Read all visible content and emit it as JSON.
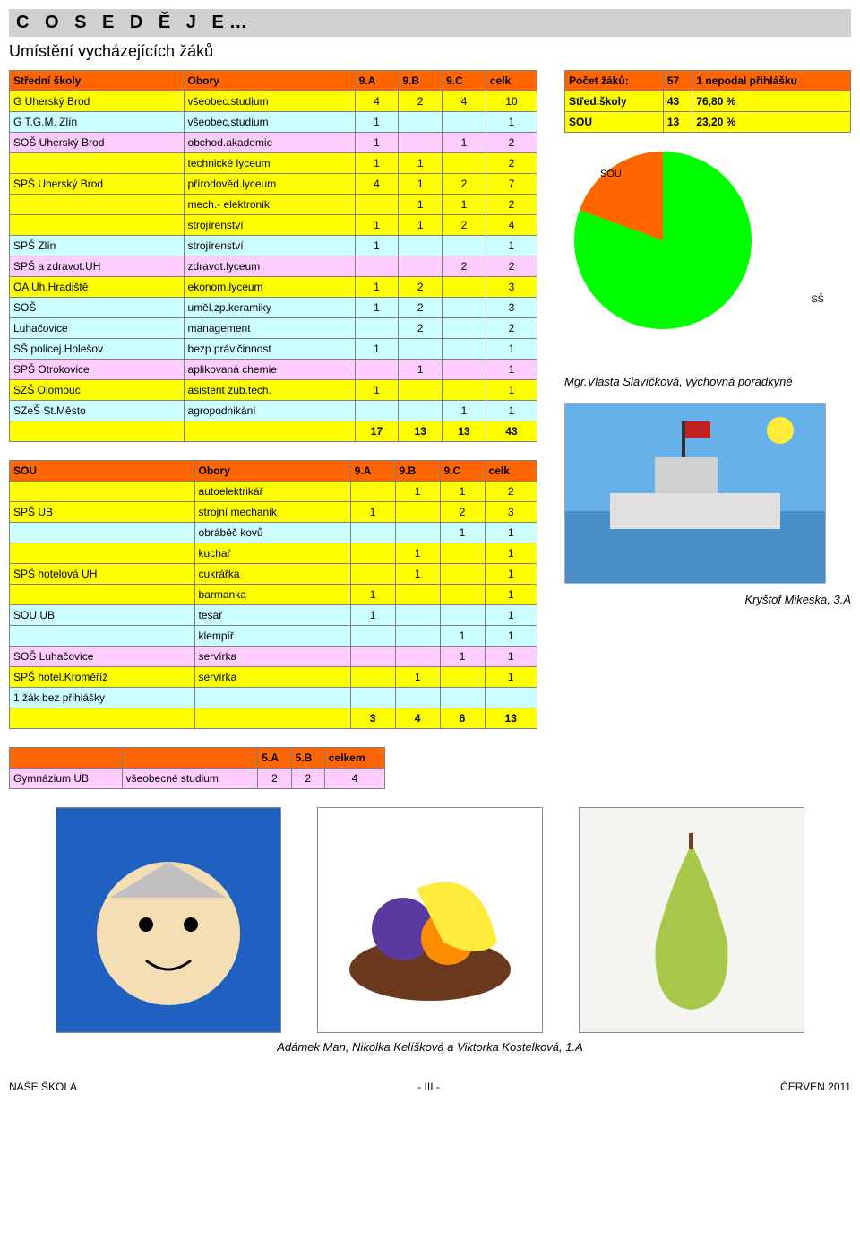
{
  "header": {
    "title": "C O  S E  D Ě J E…",
    "subtitle": "Umístění vycházejících žáků"
  },
  "table1": {
    "headers": [
      "Střední školy",
      "Obory",
      "9.A",
      "9.B",
      "9.C",
      "celk"
    ],
    "rows": [
      {
        "c": [
          "G Uherský Brod",
          "všeobec.studium",
          "4",
          "2",
          "4",
          "10"
        ],
        "cls": "row-yellow"
      },
      {
        "c": [
          "G T.G.M. Zlín",
          "všeobec.studium",
          "1",
          "",
          "",
          "1"
        ],
        "cls": "row-blue"
      },
      {
        "c": [
          "SOŠ Uherský Brod",
          "obchod.akademie",
          "1",
          "",
          "1",
          "2"
        ],
        "cls": "row-pink"
      },
      {
        "c": [
          "",
          "technické lyceum",
          "1",
          "1",
          "",
          "2"
        ],
        "cls": "row-yellow"
      },
      {
        "c": [
          "SPŠ Uherský Brod",
          "přírodověd.lyceum",
          "4",
          "1",
          "2",
          "7"
        ],
        "cls": "row-yellow"
      },
      {
        "c": [
          "",
          "mech.- elektronik",
          "",
          "1",
          "1",
          "2"
        ],
        "cls": "row-yellow"
      },
      {
        "c": [
          "",
          "strojírenství",
          "1",
          "1",
          "2",
          "4"
        ],
        "cls": "row-yellow"
      },
      {
        "c": [
          "SPŠ Zlín",
          "strojírenství",
          "1",
          "",
          "",
          "1"
        ],
        "cls": "row-blue"
      },
      {
        "c": [
          "SPŠ a zdravot.UH",
          "zdravot.lyceum",
          "",
          "",
          "2",
          "2"
        ],
        "cls": "row-pink"
      },
      {
        "c": [
          "OA Uh.Hradiště",
          "ekonom.lyceum",
          "1",
          "2",
          "",
          "3"
        ],
        "cls": "row-yellow"
      },
      {
        "c": [
          "SOŠ",
          "uměl.zp.keramiky",
          "1",
          "2",
          "",
          "3"
        ],
        "cls": "row-blue"
      },
      {
        "c": [
          "Luhačovice",
          "management",
          "",
          "2",
          "",
          "2"
        ],
        "cls": "row-blue"
      },
      {
        "c": [
          "SŠ policej.Holešov",
          "bezp.práv.činnost",
          "1",
          "",
          "",
          "1"
        ],
        "cls": "row-blue"
      },
      {
        "c": [
          "SPŠ Otrokovice",
          "aplikovaná chemie",
          "",
          "1",
          "",
          "1"
        ],
        "cls": "row-pink"
      },
      {
        "c": [
          "SZŠ Olomouc",
          "asistent zub.tech.",
          "1",
          "",
          "",
          "1"
        ],
        "cls": "row-yellow"
      },
      {
        "c": [
          "SZeŠ St.Město",
          "agropodnikání",
          "",
          "",
          "1",
          "1"
        ],
        "cls": "row-blue"
      }
    ],
    "totals": [
      "",
      "",
      "17",
      "13",
      "13",
      "43"
    ]
  },
  "table2": {
    "headers": [
      "SOU",
      "Obory",
      "9.A",
      "9.B",
      "9.C",
      "celk"
    ],
    "rows": [
      {
        "c": [
          "",
          "autoelektrikář",
          "",
          "1",
          "1",
          "2"
        ],
        "cls": "row-yellow"
      },
      {
        "c": [
          "SPŠ UB",
          "strojní mechanik",
          "1",
          "",
          "2",
          "3"
        ],
        "cls": "row-yellow"
      },
      {
        "c": [
          "",
          "obráběč kovů",
          "",
          "",
          "1",
          "1"
        ],
        "cls": "row-blue"
      },
      {
        "c": [
          "",
          "kuchař",
          "",
          "1",
          "",
          "1"
        ],
        "cls": "row-yellow"
      },
      {
        "c": [
          "SPŠ hotelová UH",
          "cukrářka",
          "",
          "1",
          "",
          "1"
        ],
        "cls": "row-yellow"
      },
      {
        "c": [
          "",
          "barmanka",
          "1",
          "",
          "",
          "1"
        ],
        "cls": "row-yellow"
      },
      {
        "c": [
          "SOU UB",
          "tesař",
          "1",
          "",
          "",
          "1"
        ],
        "cls": "row-blue"
      },
      {
        "c": [
          "",
          "klempíř",
          "",
          "",
          "1",
          "1"
        ],
        "cls": "row-blue"
      },
      {
        "c": [
          "SOŠ Luhačovice",
          "servírka",
          "",
          "",
          "1",
          "1"
        ],
        "cls": "row-pink"
      },
      {
        "c": [
          "SPŠ hotel.Kroměříž",
          "servírka",
          "",
          "1",
          "",
          "1"
        ],
        "cls": "row-yellow"
      },
      {
        "c": [
          "1 žák bez přihlášky",
          "",
          "",
          "",
          "",
          ""
        ],
        "cls": "row-blue"
      }
    ],
    "totals": [
      "",
      "",
      "3",
      "4",
      "6",
      "13"
    ]
  },
  "stats": {
    "rows": [
      {
        "c": [
          "Počet žáků:",
          "57",
          "1 nepodal přihlášku"
        ],
        "cls": "row-orange"
      },
      {
        "c": [
          "Střed.školy",
          "43",
          "76,80 %"
        ],
        "cls": "row-yellow"
      },
      {
        "c": [
          "SOU",
          "13",
          "23,20 %"
        ],
        "cls": "row-yellow"
      }
    ]
  },
  "pie": {
    "type": "pie",
    "slices": [
      {
        "label": "SOU",
        "value": 23.2,
        "color": "#ff6600"
      },
      {
        "label": "SŠ",
        "value": 76.8,
        "color": "#00ff00"
      }
    ],
    "sou_label": "SOU",
    "ss_label": "SŠ"
  },
  "caption1": "Mgr.Vlasta Slavíčková, výchovná poradkyně",
  "caption2": "Kryštof Mikeska, 3.A",
  "gym": {
    "headers": [
      "",
      "",
      "5.A",
      "5.B",
      "celkem"
    ],
    "row": {
      "c": [
        "Gymnázium UB",
        "všeobecné studium",
        "2",
        "2",
        "4"
      ],
      "cls": "row-pink"
    }
  },
  "bottom_caption": "Adámek Man, Nikolka Kelíšková a Viktorka Kostelková, 1.A",
  "footer": {
    "left": "NAŠE ŠKOLA",
    "center": "- III -",
    "right": "ČERVEN 2011"
  }
}
